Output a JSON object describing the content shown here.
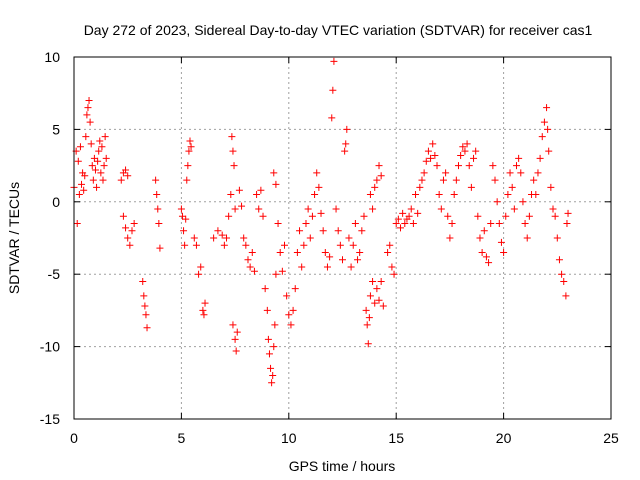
{
  "chart_data": {
    "type": "scatter",
    "title": "Day 272 of 2023, Sidereal Day-to-day VTEC variation (SDTVAR) for receiver cas1",
    "xlabel": "GPS time / hours",
    "ylabel": "SDTVAR / TECUs",
    "xlim": [
      0,
      25
    ],
    "ylim": [
      -15,
      10
    ],
    "xticks": [
      0,
      5,
      10,
      15,
      20,
      25
    ],
    "yticks": [
      10,
      5,
      0,
      -5,
      -10,
      -15
    ],
    "grid": true,
    "marker": "+",
    "color": "#ff0000",
    "series": [
      {
        "name": "SDTVAR",
        "points": [
          [
            0.0,
            1.0
          ],
          [
            0.1,
            3.5
          ],
          [
            0.15,
            -1.5
          ],
          [
            0.2,
            2.8
          ],
          [
            0.25,
            0.5
          ],
          [
            0.3,
            3.8
          ],
          [
            0.35,
            1.2
          ],
          [
            0.4,
            2.0
          ],
          [
            0.45,
            0.8
          ],
          [
            0.5,
            1.8
          ],
          [
            0.55,
            4.5
          ],
          [
            0.6,
            6.0
          ],
          [
            0.65,
            6.5
          ],
          [
            0.7,
            7.0
          ],
          [
            0.75,
            5.5
          ],
          [
            0.8,
            4.0
          ],
          [
            0.85,
            2.5
          ],
          [
            0.9,
            1.5
          ],
          [
            0.95,
            3.0
          ],
          [
            1.0,
            2.2
          ],
          [
            1.05,
            1.0
          ],
          [
            1.1,
            2.8
          ],
          [
            1.15,
            3.5
          ],
          [
            1.2,
            4.2
          ],
          [
            1.25,
            2.0
          ],
          [
            1.3,
            3.8
          ],
          [
            1.35,
            1.5
          ],
          [
            1.4,
            2.5
          ],
          [
            1.45,
            4.5
          ],
          [
            1.5,
            3.0
          ],
          [
            2.2,
            1.5
          ],
          [
            2.3,
            2.0
          ],
          [
            2.4,
            2.2
          ],
          [
            2.5,
            1.8
          ],
          [
            2.3,
            -1.0
          ],
          [
            2.4,
            -1.8
          ],
          [
            2.5,
            -2.5
          ],
          [
            2.6,
            -3.0
          ],
          [
            2.7,
            -2.0
          ],
          [
            2.8,
            -1.5
          ],
          [
            3.2,
            -5.5
          ],
          [
            3.25,
            -6.5
          ],
          [
            3.3,
            -7.2
          ],
          [
            3.35,
            -7.8
          ],
          [
            3.4,
            -8.7
          ],
          [
            3.8,
            1.5
          ],
          [
            3.85,
            0.5
          ],
          [
            3.9,
            -0.5
          ],
          [
            3.95,
            -1.5
          ],
          [
            4.0,
            -3.2
          ],
          [
            5.0,
            -0.5
          ],
          [
            5.05,
            -1.0
          ],
          [
            5.1,
            -2.0
          ],
          [
            5.15,
            -3.0
          ],
          [
            5.2,
            -1.2
          ],
          [
            5.25,
            1.5
          ],
          [
            5.3,
            2.5
          ],
          [
            5.35,
            3.5
          ],
          [
            5.4,
            4.2
          ],
          [
            5.45,
            3.8
          ],
          [
            5.6,
            -2.5
          ],
          [
            5.7,
            -3.0
          ],
          [
            5.8,
            -5.0
          ],
          [
            5.9,
            -4.5
          ],
          [
            6.0,
            -7.5
          ],
          [
            6.05,
            -7.8
          ],
          [
            6.1,
            -7.0
          ],
          [
            6.5,
            -2.5
          ],
          [
            6.7,
            -2.0
          ],
          [
            6.9,
            -2.3
          ],
          [
            7.0,
            -3.0
          ],
          [
            7.1,
            -2.5
          ],
          [
            7.2,
            -1.0
          ],
          [
            7.3,
            0.5
          ],
          [
            7.35,
            4.5
          ],
          [
            7.4,
            3.5
          ],
          [
            7.45,
            2.5
          ],
          [
            7.5,
            -0.5
          ],
          [
            7.4,
            -8.5
          ],
          [
            7.5,
            -9.5
          ],
          [
            7.55,
            -10.3
          ],
          [
            7.6,
            -9.0
          ],
          [
            7.7,
            0.8
          ],
          [
            7.8,
            -0.3
          ],
          [
            7.9,
            -2.5
          ],
          [
            8.0,
            -3.0
          ],
          [
            8.1,
            -4.0
          ],
          [
            8.2,
            -4.5
          ],
          [
            8.3,
            -3.5
          ],
          [
            8.4,
            -4.8
          ],
          [
            8.5,
            0.5
          ],
          [
            8.6,
            -0.5
          ],
          [
            8.7,
            0.8
          ],
          [
            8.8,
            -1.0
          ],
          [
            8.9,
            -6.0
          ],
          [
            9.0,
            -7.5
          ],
          [
            9.05,
            -9.5
          ],
          [
            9.1,
            -10.5
          ],
          [
            9.15,
            -11.5
          ],
          [
            9.2,
            -12.5
          ],
          [
            9.25,
            -12.0
          ],
          [
            9.3,
            -10.0
          ],
          [
            9.35,
            -8.5
          ],
          [
            9.4,
            -5.0
          ],
          [
            9.3,
            2.0
          ],
          [
            9.4,
            1.2
          ],
          [
            9.5,
            -1.5
          ],
          [
            9.6,
            -3.5
          ],
          [
            9.7,
            -4.8
          ],
          [
            9.8,
            -3.0
          ],
          [
            9.9,
            -6.5
          ],
          [
            10.0,
            -7.8
          ],
          [
            10.1,
            -8.5
          ],
          [
            10.2,
            -7.5
          ],
          [
            10.3,
            -6.0
          ],
          [
            10.4,
            -3.5
          ],
          [
            10.5,
            -2.0
          ],
          [
            10.6,
            -4.5
          ],
          [
            10.7,
            -3.0
          ],
          [
            10.8,
            -1.5
          ],
          [
            10.9,
            -0.5
          ],
          [
            11.0,
            -2.5
          ],
          [
            11.1,
            -1.0
          ],
          [
            11.2,
            0.5
          ],
          [
            11.3,
            2.0
          ],
          [
            11.4,
            1.0
          ],
          [
            11.5,
            -0.8
          ],
          [
            11.6,
            -2.0
          ],
          [
            11.7,
            -3.5
          ],
          [
            11.8,
            -4.5
          ],
          [
            11.9,
            -3.8
          ],
          [
            12.0,
            5.8
          ],
          [
            12.05,
            7.7
          ],
          [
            12.1,
            9.7
          ],
          [
            12.2,
            -0.5
          ],
          [
            12.3,
            -2.0
          ],
          [
            12.4,
            -3.0
          ],
          [
            12.5,
            -4.0
          ],
          [
            12.6,
            3.5
          ],
          [
            12.65,
            4.0
          ],
          [
            12.7,
            5.0
          ],
          [
            12.8,
            -2.5
          ],
          [
            12.9,
            -4.5
          ],
          [
            13.0,
            -3.0
          ],
          [
            13.1,
            -1.5
          ],
          [
            13.2,
            -4.0
          ],
          [
            13.3,
            -3.5
          ],
          [
            13.4,
            -2.0
          ],
          [
            13.5,
            -1.0
          ],
          [
            13.6,
            -7.5
          ],
          [
            13.65,
            -8.5
          ],
          [
            13.7,
            -9.8
          ],
          [
            13.75,
            -8.0
          ],
          [
            13.8,
            -6.5
          ],
          [
            13.9,
            -5.5
          ],
          [
            14.0,
            -7.0
          ],
          [
            14.1,
            -6.0
          ],
          [
            14.2,
            -6.8
          ],
          [
            14.3,
            -5.5
          ],
          [
            14.4,
            -7.2
          ],
          [
            13.8,
            0.5
          ],
          [
            13.9,
            -0.5
          ],
          [
            14.0,
            1.0
          ],
          [
            14.1,
            1.5
          ],
          [
            14.2,
            2.5
          ],
          [
            14.3,
            1.8
          ],
          [
            14.6,
            -3.5
          ],
          [
            14.7,
            -3.0
          ],
          [
            14.8,
            -4.5
          ],
          [
            14.9,
            -5.0
          ],
          [
            15.0,
            -1.5
          ],
          [
            15.1,
            -1.2
          ],
          [
            15.2,
            -1.8
          ],
          [
            15.3,
            -0.8
          ],
          [
            15.4,
            -1.5
          ],
          [
            15.5,
            -1.2
          ],
          [
            15.6,
            -1.0
          ],
          [
            15.7,
            -0.5
          ],
          [
            15.8,
            -1.5
          ],
          [
            15.9,
            0.5
          ],
          [
            16.0,
            -0.8
          ],
          [
            16.1,
            1.0
          ],
          [
            16.2,
            1.5
          ],
          [
            16.3,
            2.0
          ],
          [
            16.4,
            2.8
          ],
          [
            16.5,
            3.5
          ],
          [
            16.6,
            3.0
          ],
          [
            16.7,
            4.0
          ],
          [
            16.8,
            3.2
          ],
          [
            16.9,
            2.5
          ],
          [
            17.0,
            0.5
          ],
          [
            17.1,
            -0.5
          ],
          [
            17.2,
            1.5
          ],
          [
            17.3,
            2.0
          ],
          [
            17.4,
            -1.0
          ],
          [
            17.5,
            -2.5
          ],
          [
            17.6,
            -1.5
          ],
          [
            17.7,
            0.5
          ],
          [
            17.8,
            1.5
          ],
          [
            17.9,
            2.5
          ],
          [
            18.0,
            3.2
          ],
          [
            18.1,
            3.8
          ],
          [
            18.2,
            3.5
          ],
          [
            18.3,
            4.0
          ],
          [
            18.4,
            2.5
          ],
          [
            18.5,
            1.0
          ],
          [
            18.6,
            3.0
          ],
          [
            18.7,
            3.5
          ],
          [
            18.8,
            -1.0
          ],
          [
            18.9,
            -2.5
          ],
          [
            19.0,
            -3.5
          ],
          [
            19.1,
            -2.0
          ],
          [
            19.2,
            -3.8
          ],
          [
            19.3,
            -4.2
          ],
          [
            19.4,
            -1.5
          ],
          [
            19.5,
            2.5
          ],
          [
            19.6,
            1.5
          ],
          [
            19.7,
            0.0
          ],
          [
            19.8,
            -1.5
          ],
          [
            19.9,
            -2.8
          ],
          [
            20.0,
            -3.5
          ],
          [
            20.1,
            -1.0
          ],
          [
            20.2,
            0.5
          ],
          [
            20.3,
            2.0
          ],
          [
            20.4,
            1.0
          ],
          [
            20.5,
            -0.5
          ],
          [
            20.6,
            2.5
          ],
          [
            20.7,
            3.0
          ],
          [
            20.8,
            2.0
          ],
          [
            20.9,
            0.0
          ],
          [
            21.0,
            -1.5
          ],
          [
            21.1,
            -2.5
          ],
          [
            21.2,
            -1.0
          ],
          [
            21.3,
            0.5
          ],
          [
            21.4,
            1.5
          ],
          [
            21.5,
            0.5
          ],
          [
            21.6,
            2.0
          ],
          [
            21.7,
            3.0
          ],
          [
            21.8,
            4.5
          ],
          [
            21.9,
            5.5
          ],
          [
            22.0,
            6.5
          ],
          [
            22.05,
            5.0
          ],
          [
            22.1,
            3.5
          ],
          [
            22.2,
            1.0
          ],
          [
            22.3,
            -0.5
          ],
          [
            22.4,
            -1.0
          ],
          [
            22.5,
            -2.5
          ],
          [
            22.6,
            -4.0
          ],
          [
            22.7,
            -5.0
          ],
          [
            22.8,
            -5.5
          ],
          [
            22.9,
            -6.5
          ],
          [
            22.95,
            -1.5
          ],
          [
            23.0,
            -0.8
          ]
        ]
      }
    ]
  }
}
